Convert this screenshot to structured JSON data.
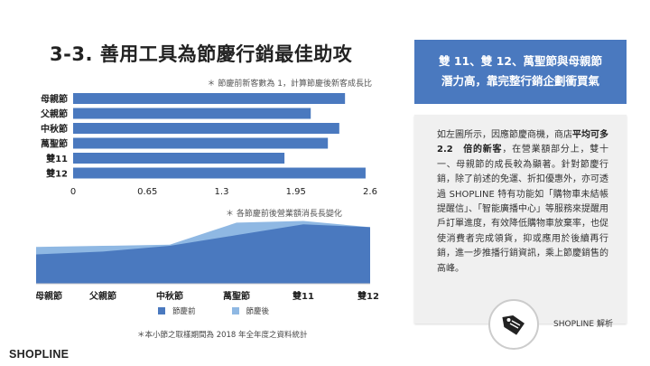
{
  "title": "3-3. 善用工具為節慶行銷最佳助攻",
  "top_note": "＊ 節慶前新客數為 1，計算節慶後新客成長比",
  "area_note": "＊ 各節慶前後營業額消長長變化",
  "footnote": "＊本小節之取樣期間為 2018 年全年度之資料統計",
  "logo": "SHOPLINE",
  "blue_box": {
    "line1": "雙 11、雙 12、萬聖節與母親節",
    "line2": "潛力高，靠完整行銷企劃衝買氣"
  },
  "body_text": {
    "part1": "如左圖所示，因應節慶商機，商店",
    "bold": "平均可多　2.2　倍的新客",
    "part2": "，在營業額部分上，雙十一、母親節的成長較為顯著。針對節慶行銷，除了前述的免運、折扣優惠外，亦可透過 SHOPLINE 特有功能如「購物車未結帳提醒信」、「智能廣播中心」等服務來提醒用戶訂單進度，有效降低購物車放棄率，也促使消費者完成領貨，抑或應用於後續再行銷，進一步推播行銷資訊，乘上節慶銷售的高峰。"
  },
  "badge_label": "SHOPLINE 解析",
  "legend": {
    "before": "節慶前",
    "after": "節慶後"
  },
  "colors": {
    "bar": "#4a79bf",
    "before": "#4a79bf",
    "after": "#8fb8e3",
    "blue_box": "#4a79bf"
  },
  "chart_data": [
    {
      "type": "bar",
      "orientation": "horizontal",
      "categories": [
        "母親節",
        "父親節",
        "中秋節",
        "萬聖節",
        "雙11",
        "雙12"
      ],
      "values": [
        2.38,
        2.08,
        2.33,
        2.23,
        1.85,
        2.56
      ],
      "xlim": [
        0,
        2.6
      ],
      "xticks": [
        "0",
        "0.65",
        "1.3",
        "1.95",
        "2.6"
      ],
      "title": "",
      "xlabel": "",
      "ylabel": ""
    },
    {
      "type": "area",
      "categories": [
        "母親節",
        "父親節",
        "中秋節",
        "萬聖節",
        "雙11",
        "雙12"
      ],
      "series": [
        {
          "name": "節慶前",
          "values": [
            0.52,
            0.57,
            0.67,
            0.86,
            1.05,
            1.0
          ]
        },
        {
          "name": "節慶後",
          "values": [
            0.65,
            0.67,
            0.69,
            1.08,
            1.11,
            1.0
          ]
        }
      ],
      "ylim": [
        0,
        1.15
      ],
      "grid": false,
      "legend": "bottom"
    }
  ]
}
